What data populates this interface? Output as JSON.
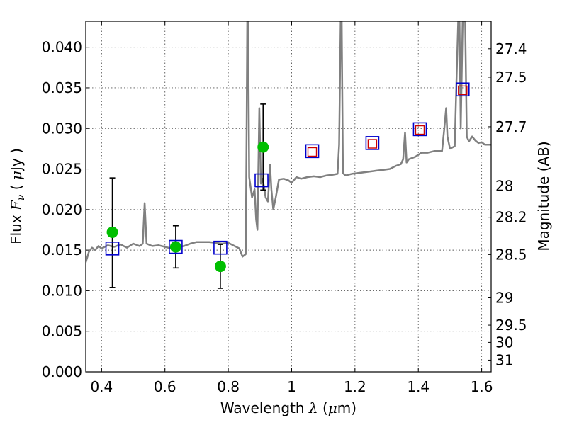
{
  "chart_data": {
    "type": "scatter",
    "xlabel": "Wavelength  λ (μm)",
    "xlabel_parts": {
      "text": "Wavelength  ",
      "lambda": "λ",
      "unit_open": " (",
      "mu": "μ",
      "unit_close": "m)"
    },
    "ylabel": "Flux  Fν  ( μJy )",
    "ylabel_parts": {
      "text": "Flux  ",
      "F": "F",
      "nu": "ν",
      "open": "  ( ",
      "mu": "μ",
      "close": "Jy )"
    },
    "y2label": "Magnitude (AB)",
    "xlim": [
      0.35,
      1.63
    ],
    "ylim": [
      0.0,
      0.0432
    ],
    "grid": true,
    "x_ticks": [
      {
        "value": 0.4,
        "label": "0.4"
      },
      {
        "value": 0.6,
        "label": "0.6"
      },
      {
        "value": 0.8,
        "label": "0.8"
      },
      {
        "value": 1.0,
        "label": "1"
      },
      {
        "value": 1.2,
        "label": "1.2"
      },
      {
        "value": 1.4,
        "label": "1.4"
      },
      {
        "value": 1.6,
        "label": "1.6"
      }
    ],
    "y_ticks": [
      {
        "value": 0.0,
        "label": "0.000"
      },
      {
        "value": 0.005,
        "label": "0.005"
      },
      {
        "value": 0.01,
        "label": "0.010"
      },
      {
        "value": 0.015,
        "label": "0.015"
      },
      {
        "value": 0.02,
        "label": "0.020"
      },
      {
        "value": 0.025,
        "label": "0.025"
      },
      {
        "value": 0.03,
        "label": "0.030"
      },
      {
        "value": 0.035,
        "label": "0.035"
      },
      {
        "value": 0.04,
        "label": "0.040"
      }
    ],
    "y2_ticks": [
      {
        "value": 27.4,
        "label": "27.4"
      },
      {
        "value": 27.5,
        "label": "27.5"
      },
      {
        "value": 27.7,
        "label": "27.7"
      },
      {
        "value": 28.0,
        "label": "28"
      },
      {
        "value": 28.2,
        "label": "28.2"
      },
      {
        "value": 28.5,
        "label": "28.5"
      },
      {
        "value": 29.0,
        "label": "29"
      },
      {
        "value": 29.5,
        "label": "29.5"
      },
      {
        "value": 30.0,
        "label": "30"
      },
      {
        "value": 31.0,
        "label": "31"
      }
    ],
    "model_spectrum": [
      [
        0.35,
        0.0135
      ],
      [
        0.36,
        0.0148
      ],
      [
        0.37,
        0.0153
      ],
      [
        0.38,
        0.015
      ],
      [
        0.39,
        0.0155
      ],
      [
        0.4,
        0.0152
      ],
      [
        0.42,
        0.0156
      ],
      [
        0.44,
        0.0154
      ],
      [
        0.46,
        0.0157
      ],
      [
        0.48,
        0.0153
      ],
      [
        0.5,
        0.0158
      ],
      [
        0.52,
        0.0155
      ],
      [
        0.53,
        0.0158
      ],
      [
        0.536,
        0.0208
      ],
      [
        0.542,
        0.0158
      ],
      [
        0.56,
        0.0155
      ],
      [
        0.58,
        0.0156
      ],
      [
        0.6,
        0.0154
      ],
      [
        0.62,
        0.0152
      ],
      [
        0.64,
        0.0154
      ],
      [
        0.66,
        0.0155
      ],
      [
        0.68,
        0.0158
      ],
      [
        0.7,
        0.016
      ],
      [
        0.72,
        0.016
      ],
      [
        0.74,
        0.016
      ],
      [
        0.76,
        0.0159
      ],
      [
        0.78,
        0.0158
      ],
      [
        0.8,
        0.0159
      ],
      [
        0.82,
        0.0155
      ],
      [
        0.835,
        0.0152
      ],
      [
        0.845,
        0.0142
      ],
      [
        0.855,
        0.0145
      ],
      [
        0.858,
        0.03
      ],
      [
        0.86,
        0.0432
      ],
      [
        0.863,
        0.0432
      ],
      [
        0.866,
        0.024
      ],
      [
        0.875,
        0.0215
      ],
      [
        0.883,
        0.0225
      ],
      [
        0.888,
        0.0188
      ],
      [
        0.892,
        0.0175
      ],
      [
        0.898,
        0.0325
      ],
      [
        0.903,
        0.0232
      ],
      [
        0.908,
        0.0238
      ],
      [
        0.913,
        0.0228
      ],
      [
        0.918,
        0.0215
      ],
      [
        0.925,
        0.021
      ],
      [
        0.932,
        0.0255
      ],
      [
        0.936,
        0.0225
      ],
      [
        0.942,
        0.02
      ],
      [
        0.95,
        0.0215
      ],
      [
        0.96,
        0.0237
      ],
      [
        0.975,
        0.0238
      ],
      [
        0.99,
        0.0236
      ],
      [
        1.0,
        0.0233
      ],
      [
        1.015,
        0.024
      ],
      [
        1.03,
        0.0238
      ],
      [
        1.05,
        0.024
      ],
      [
        1.07,
        0.0241
      ],
      [
        1.09,
        0.024
      ],
      [
        1.11,
        0.0242
      ],
      [
        1.13,
        0.0243
      ],
      [
        1.145,
        0.0244
      ],
      [
        1.15,
        0.028
      ],
      [
        1.155,
        0.0432
      ],
      [
        1.158,
        0.0432
      ],
      [
        1.162,
        0.0245
      ],
      [
        1.17,
        0.0242
      ],
      [
        1.19,
        0.0244
      ],
      [
        1.21,
        0.0245
      ],
      [
        1.23,
        0.0246
      ],
      [
        1.25,
        0.0247
      ],
      [
        1.27,
        0.0248
      ],
      [
        1.29,
        0.0249
      ],
      [
        1.31,
        0.025
      ],
      [
        1.33,
        0.0254
      ],
      [
        1.345,
        0.0256
      ],
      [
        1.352,
        0.0262
      ],
      [
        1.358,
        0.0295
      ],
      [
        1.363,
        0.0258
      ],
      [
        1.37,
        0.0262
      ],
      [
        1.39,
        0.0265
      ],
      [
        1.41,
        0.027
      ],
      [
        1.43,
        0.027
      ],
      [
        1.45,
        0.0272
      ],
      [
        1.475,
        0.0272
      ],
      [
        1.482,
        0.03
      ],
      [
        1.488,
        0.0325
      ],
      [
        1.492,
        0.029
      ],
      [
        1.5,
        0.0275
      ],
      [
        1.515,
        0.0278
      ],
      [
        1.52,
        0.035
      ],
      [
        1.526,
        0.0432
      ],
      [
        1.53,
        0.0432
      ],
      [
        1.534,
        0.03
      ],
      [
        1.54,
        0.0432
      ],
      [
        1.548,
        0.0432
      ],
      [
        1.553,
        0.029
      ],
      [
        1.56,
        0.0284
      ],
      [
        1.57,
        0.029
      ],
      [
        1.58,
        0.0285
      ],
      [
        1.59,
        0.0282
      ],
      [
        1.6,
        0.0283
      ],
      [
        1.61,
        0.028
      ],
      [
        1.62,
        0.028
      ],
      [
        1.63,
        0.028
      ]
    ],
    "observed": [
      {
        "x": 0.434,
        "y": 0.0172,
        "yerr_low": 0.0104,
        "yerr_high": 0.0239
      },
      {
        "x": 0.634,
        "y": 0.0154,
        "yerr_low": 0.0128,
        "yerr_high": 0.018
      },
      {
        "x": 0.775,
        "y": 0.013,
        "yerr_low": 0.0103,
        "yerr_high": 0.0157
      },
      {
        "x": 0.91,
        "y": 0.0277,
        "yerr_low": 0.0224,
        "yerr_high": 0.033
      }
    ],
    "model_photometry": [
      {
        "x": 0.434,
        "y": 0.0152
      },
      {
        "x": 0.634,
        "y": 0.0154
      },
      {
        "x": 0.775,
        "y": 0.0153
      },
      {
        "x": 0.905,
        "y": 0.0236
      },
      {
        "x": 1.065,
        "y": 0.0272
      },
      {
        "x": 1.255,
        "y": 0.0282
      },
      {
        "x": 1.405,
        "y": 0.0299
      },
      {
        "x": 1.54,
        "y": 0.0348
      }
    ],
    "predicted": [
      {
        "x": 1.065,
        "y": 0.0271
      },
      {
        "x": 1.255,
        "y": 0.0281
      },
      {
        "x": 1.405,
        "y": 0.0298
      },
      {
        "x": 1.54,
        "y": 0.0347
      }
    ],
    "colors": {
      "spectrum": "#808080",
      "observed": "#00bf00",
      "model_photometry": "#0000cc",
      "predicted": "#cc0000",
      "error_bar": "#000000",
      "grid": "#555555"
    }
  }
}
